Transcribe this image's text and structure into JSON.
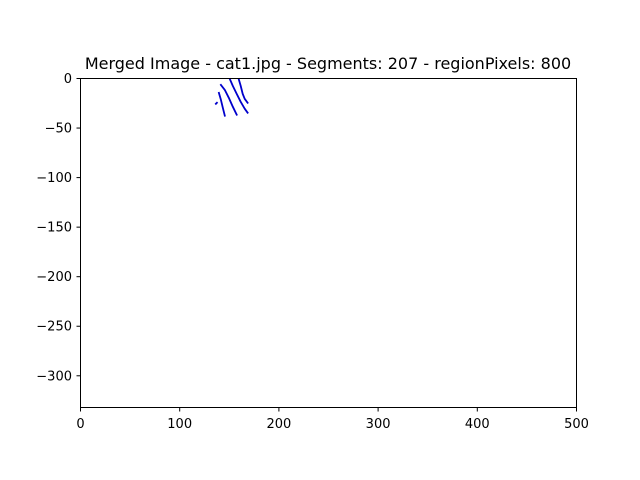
{
  "chart_data": {
    "type": "line",
    "title": "Merged Image - cat1.jpg - Segments: 207 - regionPixels: 800",
    "xlabel": "",
    "ylabel": "",
    "xlim": [
      0,
      500
    ],
    "ylim": [
      -332,
      0
    ],
    "x_ticks": [
      0,
      100,
      200,
      300,
      400,
      500
    ],
    "x_tick_labels": [
      "0",
      "100",
      "200",
      "300",
      "400",
      "500"
    ],
    "y_ticks": [
      0,
      -50,
      -100,
      -150,
      -200,
      -250,
      -300
    ],
    "y_tick_labels": [
      "0",
      "−50",
      "−100",
      "−150",
      "−200",
      "−250",
      "−300"
    ],
    "grid": false,
    "line_color": "#0000cc",
    "series": [
      {
        "x": [
          137,
          138
        ],
        "y": [
          -26,
          -25
        ]
      },
      {
        "x": [
          140,
          142,
          144,
          146
        ],
        "y": [
          -15,
          -22,
          -30,
          -38
        ]
      },
      {
        "x": [
          142,
          146,
          150,
          154,
          158
        ],
        "y": [
          -7,
          -12,
          -20,
          -29,
          -37
        ]
      },
      {
        "x": [
          151,
          154,
          158,
          162,
          166,
          169
        ],
        "y": [
          -1,
          -8,
          -16,
          -24,
          -31,
          -35
        ]
      },
      {
        "x": [
          160,
          162,
          164,
          166,
          169
        ],
        "y": [
          -1,
          -8,
          -16,
          -21,
          -25
        ]
      }
    ]
  }
}
